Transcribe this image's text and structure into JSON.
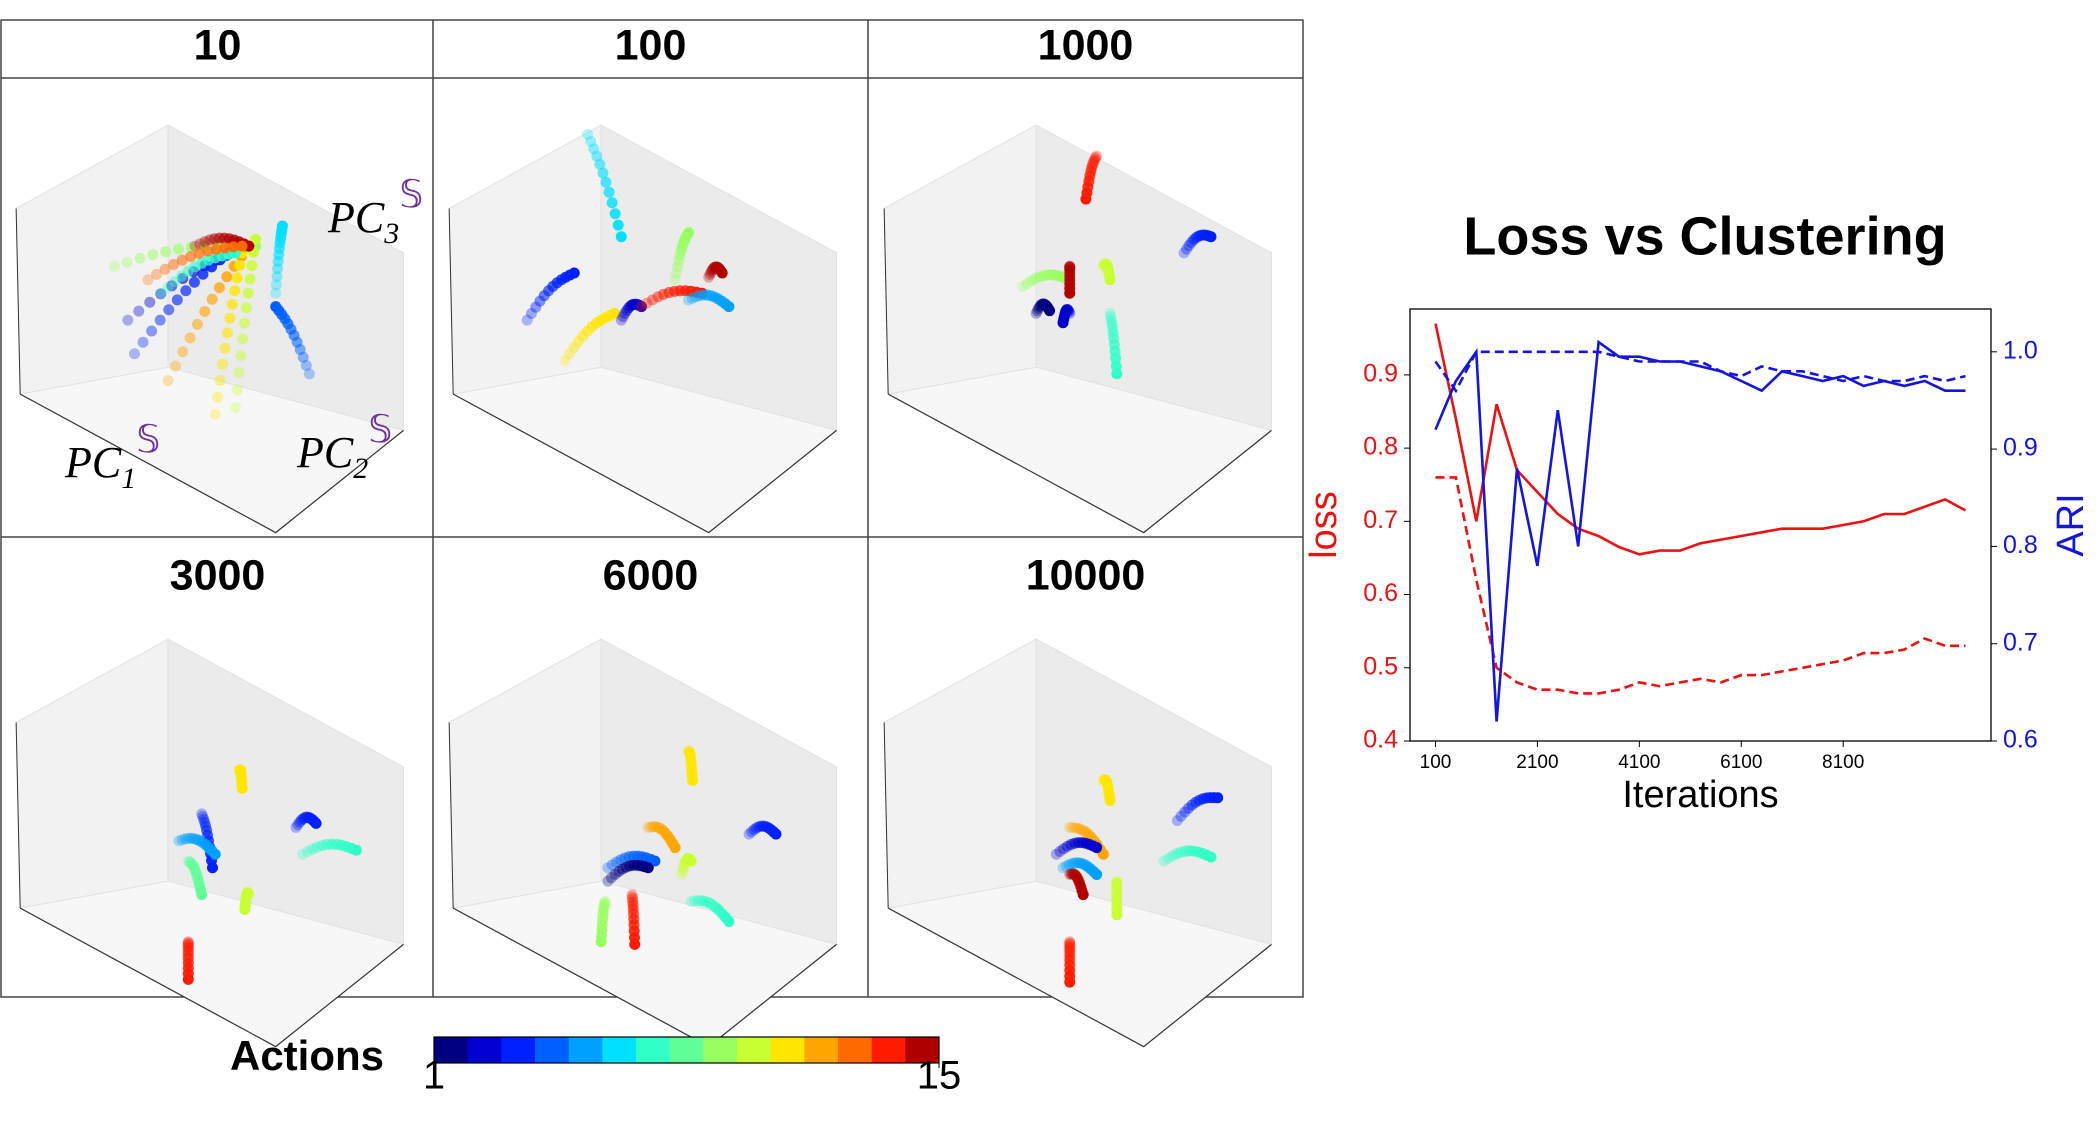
{
  "chart_data": [
    {
      "type": "scatter3d-grid",
      "panels": [
        {
          "title": "10",
          "axis_labels": [
            {
              "base": "PC",
              "sub": "1",
              "sup": "𝕊"
            },
            {
              "base": "PC",
              "sub": "2",
              "sup": "𝕊"
            },
            {
              "base": "PC",
              "sub": "3",
              "sup": "𝕊"
            }
          ]
        },
        {
          "title": "100"
        },
        {
          "title": "1000"
        },
        {
          "title": "3000"
        },
        {
          "title": "6000"
        },
        {
          "title": "10000"
        }
      ],
      "colorbar": {
        "label": "Actions",
        "lim": [
          1,
          15
        ],
        "ticks": [
          1,
          15
        ],
        "colors": [
          "#000080",
          "#0000d0",
          "#0020ff",
          "#0060ff",
          "#00a0ff",
          "#00e0ff",
          "#30ffc8",
          "#60ff98",
          "#98ff60",
          "#c8ff30",
          "#ffe600",
          "#ffa500",
          "#ff6a00",
          "#ff1a00",
          "#b00000"
        ]
      }
    },
    {
      "type": "line",
      "title": "Loss vs Clustering",
      "x_label": "Iterations",
      "y_label": "loss",
      "y2_label": "ARI",
      "y_color": "#ee1111",
      "y2_color": "#1515e0",
      "x": [
        100,
        500,
        900,
        1300,
        1700,
        2100,
        2500,
        2900,
        3300,
        3700,
        4100,
        4500,
        4900,
        5300,
        5700,
        6100,
        6500,
        6900,
        7300,
        7700,
        8100,
        8500,
        8900,
        9300,
        9700,
        10100,
        10500
      ],
      "xlim": [
        -400,
        11000
      ],
      "xticks": [
        100,
        2100,
        4100,
        6100,
        8100
      ],
      "ylim": [
        0.4,
        0.99
      ],
      "yticks": [
        0.4,
        0.5,
        0.6,
        0.7,
        0.8,
        0.9
      ],
      "y2lim": [
        0.6,
        1.044
      ],
      "y2ticks": [
        0.6,
        0.7,
        0.8,
        0.9,
        {
          "value": 1,
          "label": "1.0"
        }
      ],
      "series": [
        {
          "color": "#ee1111",
          "line_style": "solid",
          "values": [
            0.97,
            0.84,
            0.7,
            0.86,
            0.77,
            0.74,
            0.71,
            0.69,
            0.68,
            0.665,
            0.655,
            0.66,
            0.66,
            0.67,
            0.675,
            0.68,
            0.685,
            0.69,
            0.69,
            0.69,
            0.695,
            0.7,
            0.71,
            0.71,
            0.72,
            0.73,
            0.715
          ]
        },
        {
          "color": "#ee1111",
          "line_style": "dashed",
          "values": [
            0.76,
            0.76,
            0.62,
            0.5,
            0.48,
            0.47,
            0.47,
            0.465,
            0.465,
            0.47,
            0.48,
            0.475,
            0.48,
            0.485,
            0.48,
            0.49,
            0.49,
            0.495,
            0.5,
            0.505,
            0.51,
            0.52,
            0.52,
            0.525,
            0.54,
            0.53,
            0.53
          ]
        },
        {
          "color": "#1515e0",
          "line_style": "solid",
          "axis": "y2",
          "values": [
            0.92,
            0.97,
            1.0,
            0.62,
            0.88,
            0.78,
            0.94,
            0.8,
            1.01,
            0.995,
            0.995,
            0.99,
            0.99,
            0.985,
            0.98,
            0.97,
            0.96,
            0.98,
            0.975,
            0.97,
            0.975,
            0.965,
            0.97,
            0.965,
            0.97,
            0.96,
            0.96
          ]
        },
        {
          "color": "#1515e0",
          "line_style": "dashed",
          "axis": "y2",
          "values": [
            0.99,
            0.96,
            1.0,
            1.0,
            1.0,
            1.0,
            1.0,
            1.0,
            1.0,
            0.995,
            0.99,
            0.99,
            0.99,
            0.99,
            0.98,
            0.975,
            0.985,
            0.98,
            0.98,
            0.975,
            0.97,
            0.975,
            0.97,
            0.97,
            0.975,
            0.97,
            0.975
          ]
        }
      ]
    }
  ]
}
